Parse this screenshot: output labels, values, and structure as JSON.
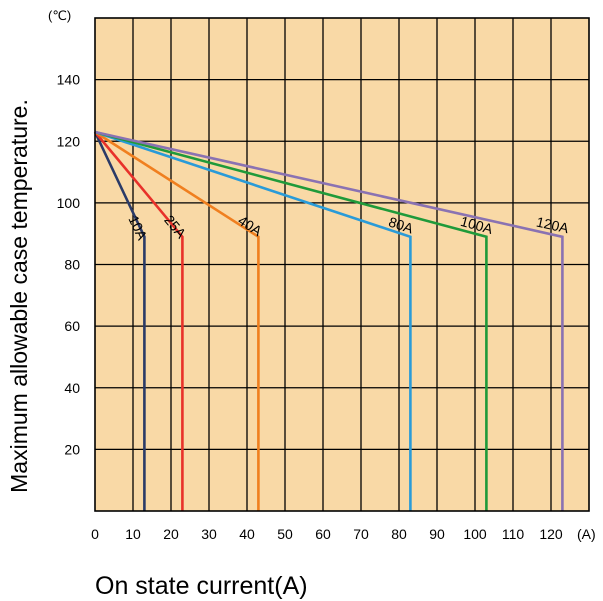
{
  "chart_data": {
    "type": "line",
    "title": "",
    "xlabel": "On state current(A)",
    "ylabel": "Maximum allowable case temperature.",
    "x_unit": "(A)",
    "y_unit": "(℃)",
    "xlim": [
      0,
      130
    ],
    "ylim": [
      0,
      160
    ],
    "x_ticks": [
      0,
      10,
      20,
      30,
      40,
      50,
      60,
      70,
      80,
      90,
      100,
      110,
      120
    ],
    "y_ticks": [
      20,
      40,
      60,
      80,
      100,
      120,
      140
    ],
    "grid": true,
    "background_color": "#f9d9a6",
    "series": [
      {
        "name": "10A",
        "color": "#2b3a67",
        "x": [
          0,
          13,
          13
        ],
        "y": [
          123,
          89,
          0
        ]
      },
      {
        "name": "25A",
        "color": "#e8312a",
        "x": [
          0,
          23,
          23
        ],
        "y": [
          123,
          89,
          0
        ]
      },
      {
        "name": "40A",
        "color": "#f07f1f",
        "x": [
          0,
          43,
          43
        ],
        "y": [
          123,
          89,
          0
        ]
      },
      {
        "name": "80A",
        "color": "#2a9bd8",
        "x": [
          0,
          83,
          83
        ],
        "y": [
          123,
          89,
          0
        ]
      },
      {
        "name": "100A",
        "color": "#1f9a3a",
        "x": [
          0,
          103,
          103
        ],
        "y": [
          123,
          89,
          0
        ]
      },
      {
        "name": "120A",
        "color": "#8a72b2",
        "x": [
          0,
          123,
          123
        ],
        "y": [
          123,
          89,
          0
        ]
      }
    ]
  }
}
